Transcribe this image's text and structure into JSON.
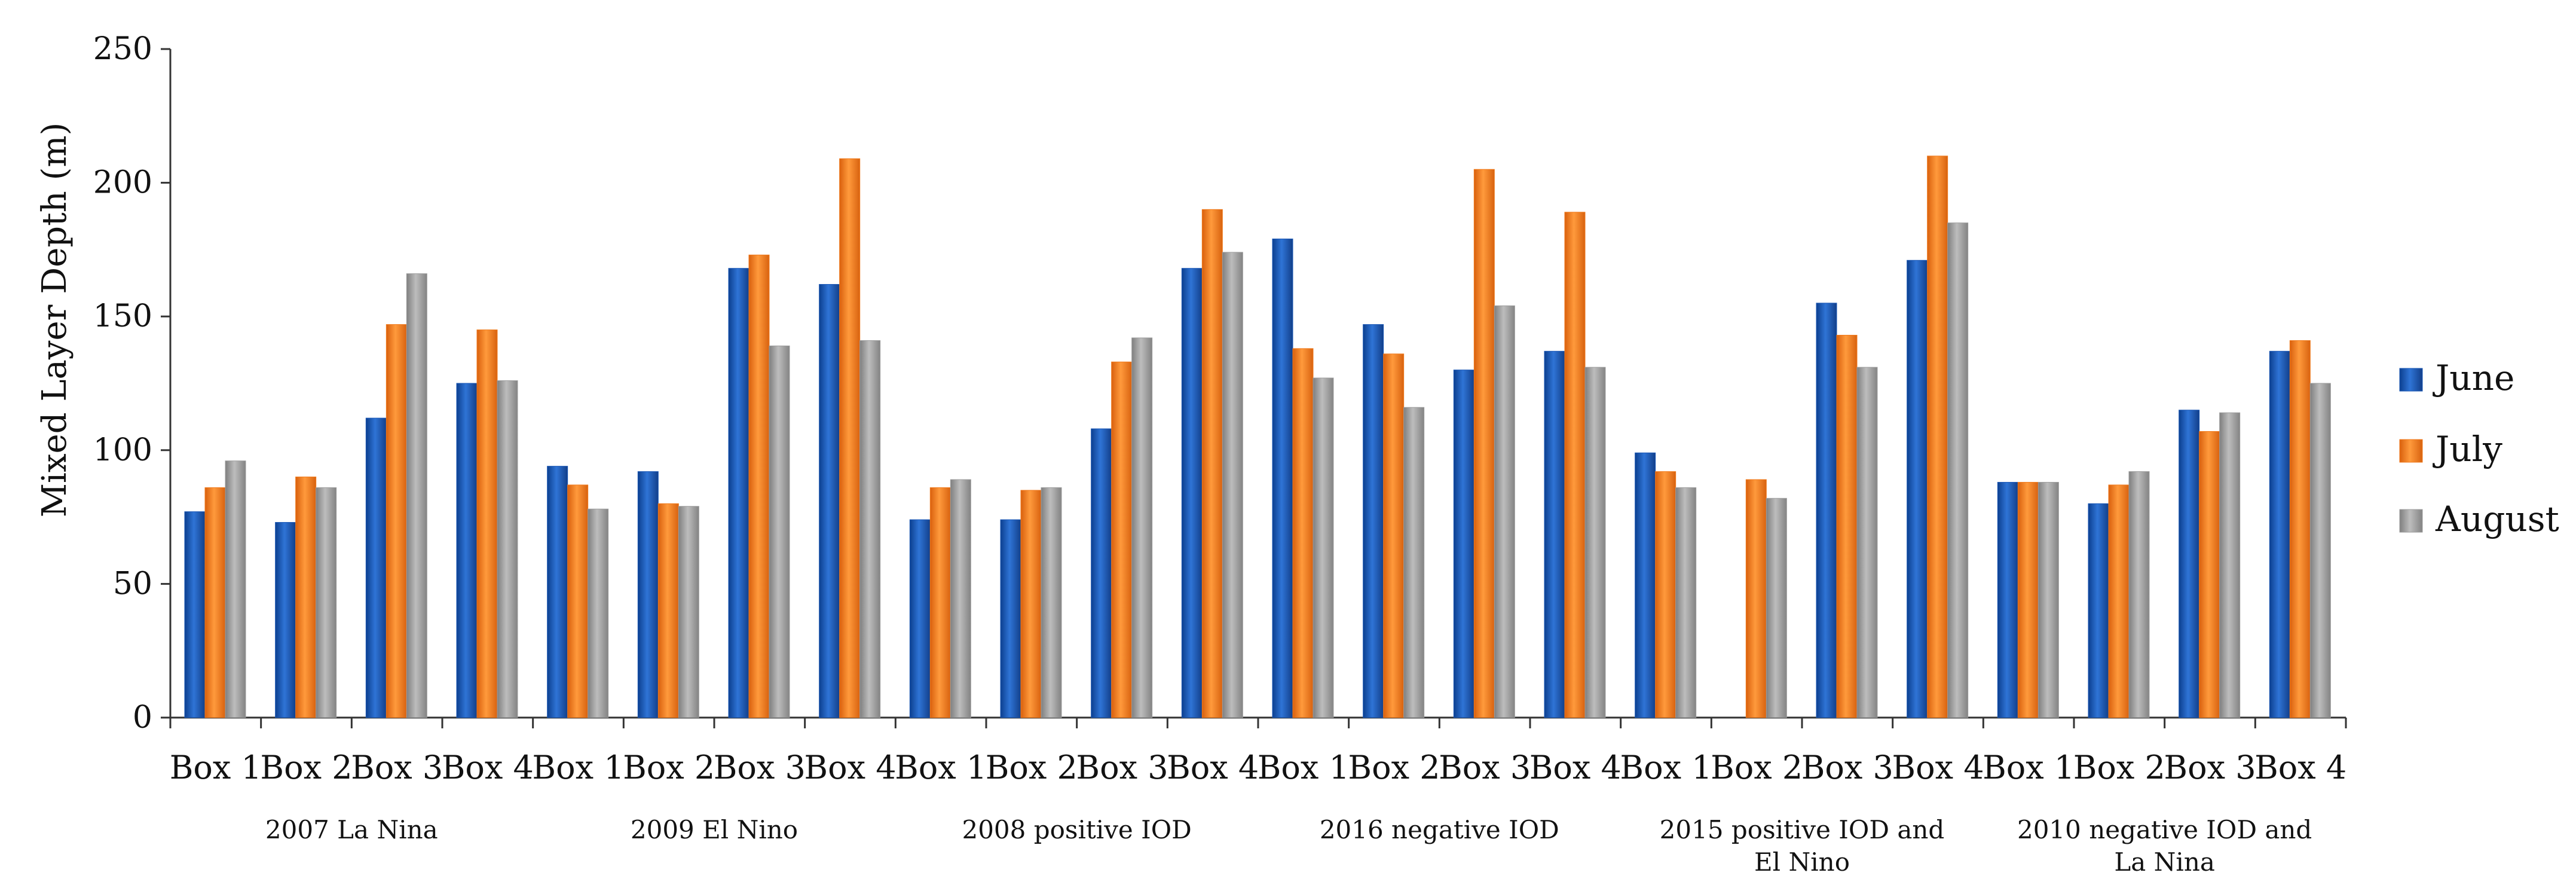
{
  "chart_data": {
    "type": "bar",
    "title": "",
    "xlabel": "",
    "ylabel": "Mixed Layer Depth (m)",
    "ylim": [
      0,
      250
    ],
    "yticks": [
      0,
      50,
      100,
      150,
      200,
      250
    ],
    "grid": false,
    "legend_position": "right",
    "categories": [
      "Box 1",
      "Box 2",
      "Box 3",
      "Box 4",
      "Box 1",
      "Box 2",
      "Box 3",
      "Box 4",
      "Box 1",
      "Box 2",
      "Box 3",
      "Box 4",
      "Box 1",
      "Box 2",
      "Box 3",
      "Box 4",
      "Box 1",
      "Box 2",
      "Box 3",
      "Box 4",
      "Box 1",
      "Box 2",
      "Box 3",
      "Box 4"
    ],
    "groups": [
      {
        "lines": [
          "2007 La Nina"
        ]
      },
      {
        "lines": [
          "2009 El Nino"
        ]
      },
      {
        "lines": [
          "2008 positive IOD"
        ]
      },
      {
        "lines": [
          "2016 negative IOD"
        ]
      },
      {
        "lines": [
          "2015 positive IOD and",
          "El Nino"
        ]
      },
      {
        "lines": [
          "2010 negative IOD and",
          "La Nina"
        ]
      }
    ],
    "series": [
      {
        "name": "June",
        "color": "#1a57b5",
        "values": [
          77,
          73,
          112,
          125,
          94,
          92,
          168,
          162,
          74,
          74,
          108,
          168,
          179,
          147,
          130,
          137,
          99,
          0,
          155,
          171,
          88,
          80,
          115,
          137
        ]
      },
      {
        "name": "July",
        "color": "#f07a1c",
        "values": [
          86,
          90,
          147,
          145,
          87,
          80,
          173,
          209,
          86,
          85,
          133,
          190,
          138,
          136,
          205,
          189,
          92,
          89,
          143,
          210,
          88,
          87,
          107,
          141
        ]
      },
      {
        "name": "August",
        "color": "#9c9c9c",
        "values": [
          96,
          86,
          166,
          126,
          78,
          79,
          139,
          141,
          89,
          86,
          142,
          174,
          127,
          116,
          154,
          131,
          86,
          82,
          131,
          185,
          88,
          92,
          114,
          125
        ]
      }
    ]
  }
}
